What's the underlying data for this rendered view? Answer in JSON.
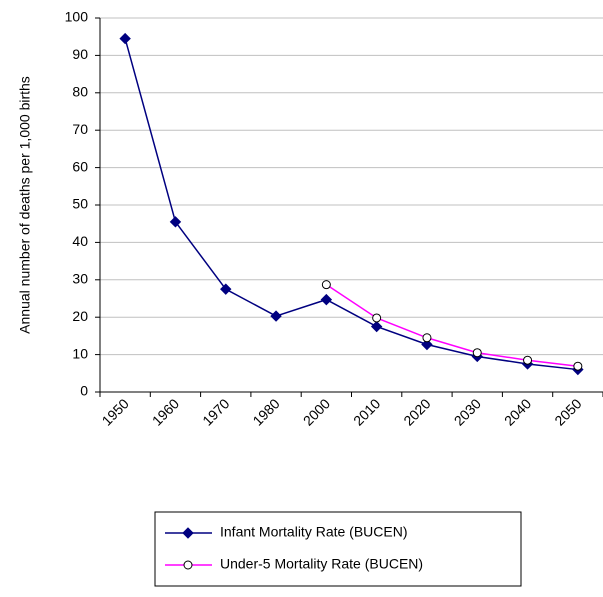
{
  "chart_data": {
    "type": "line",
    "y_label": "Annual number of deaths per 1,000 births",
    "categories": [
      "1950",
      "1960",
      "1970",
      "1980",
      "2000",
      "2010",
      "2020",
      "2030",
      "2040",
      "2050"
    ],
    "series": [
      {
        "name": "Infant Mortality Rate (BUCEN)",
        "color": "#000080",
        "values": [
          94.5,
          45.5,
          27.5,
          20.3,
          24.7,
          17.5,
          12.7,
          9.5,
          7.5,
          6.0
        ]
      },
      {
        "name": "Under-5 Mortality Rate (BUCEN)",
        "color": "#ff00ff",
        "values": [
          null,
          null,
          null,
          null,
          28.7,
          19.8,
          14.5,
          10.5,
          8.5,
          6.9
        ]
      }
    ],
    "ylim": [
      0,
      100
    ],
    "yticks": [
      0,
      10,
      20,
      30,
      40,
      50,
      60,
      70,
      80,
      90,
      100
    ],
    "grid": true
  }
}
